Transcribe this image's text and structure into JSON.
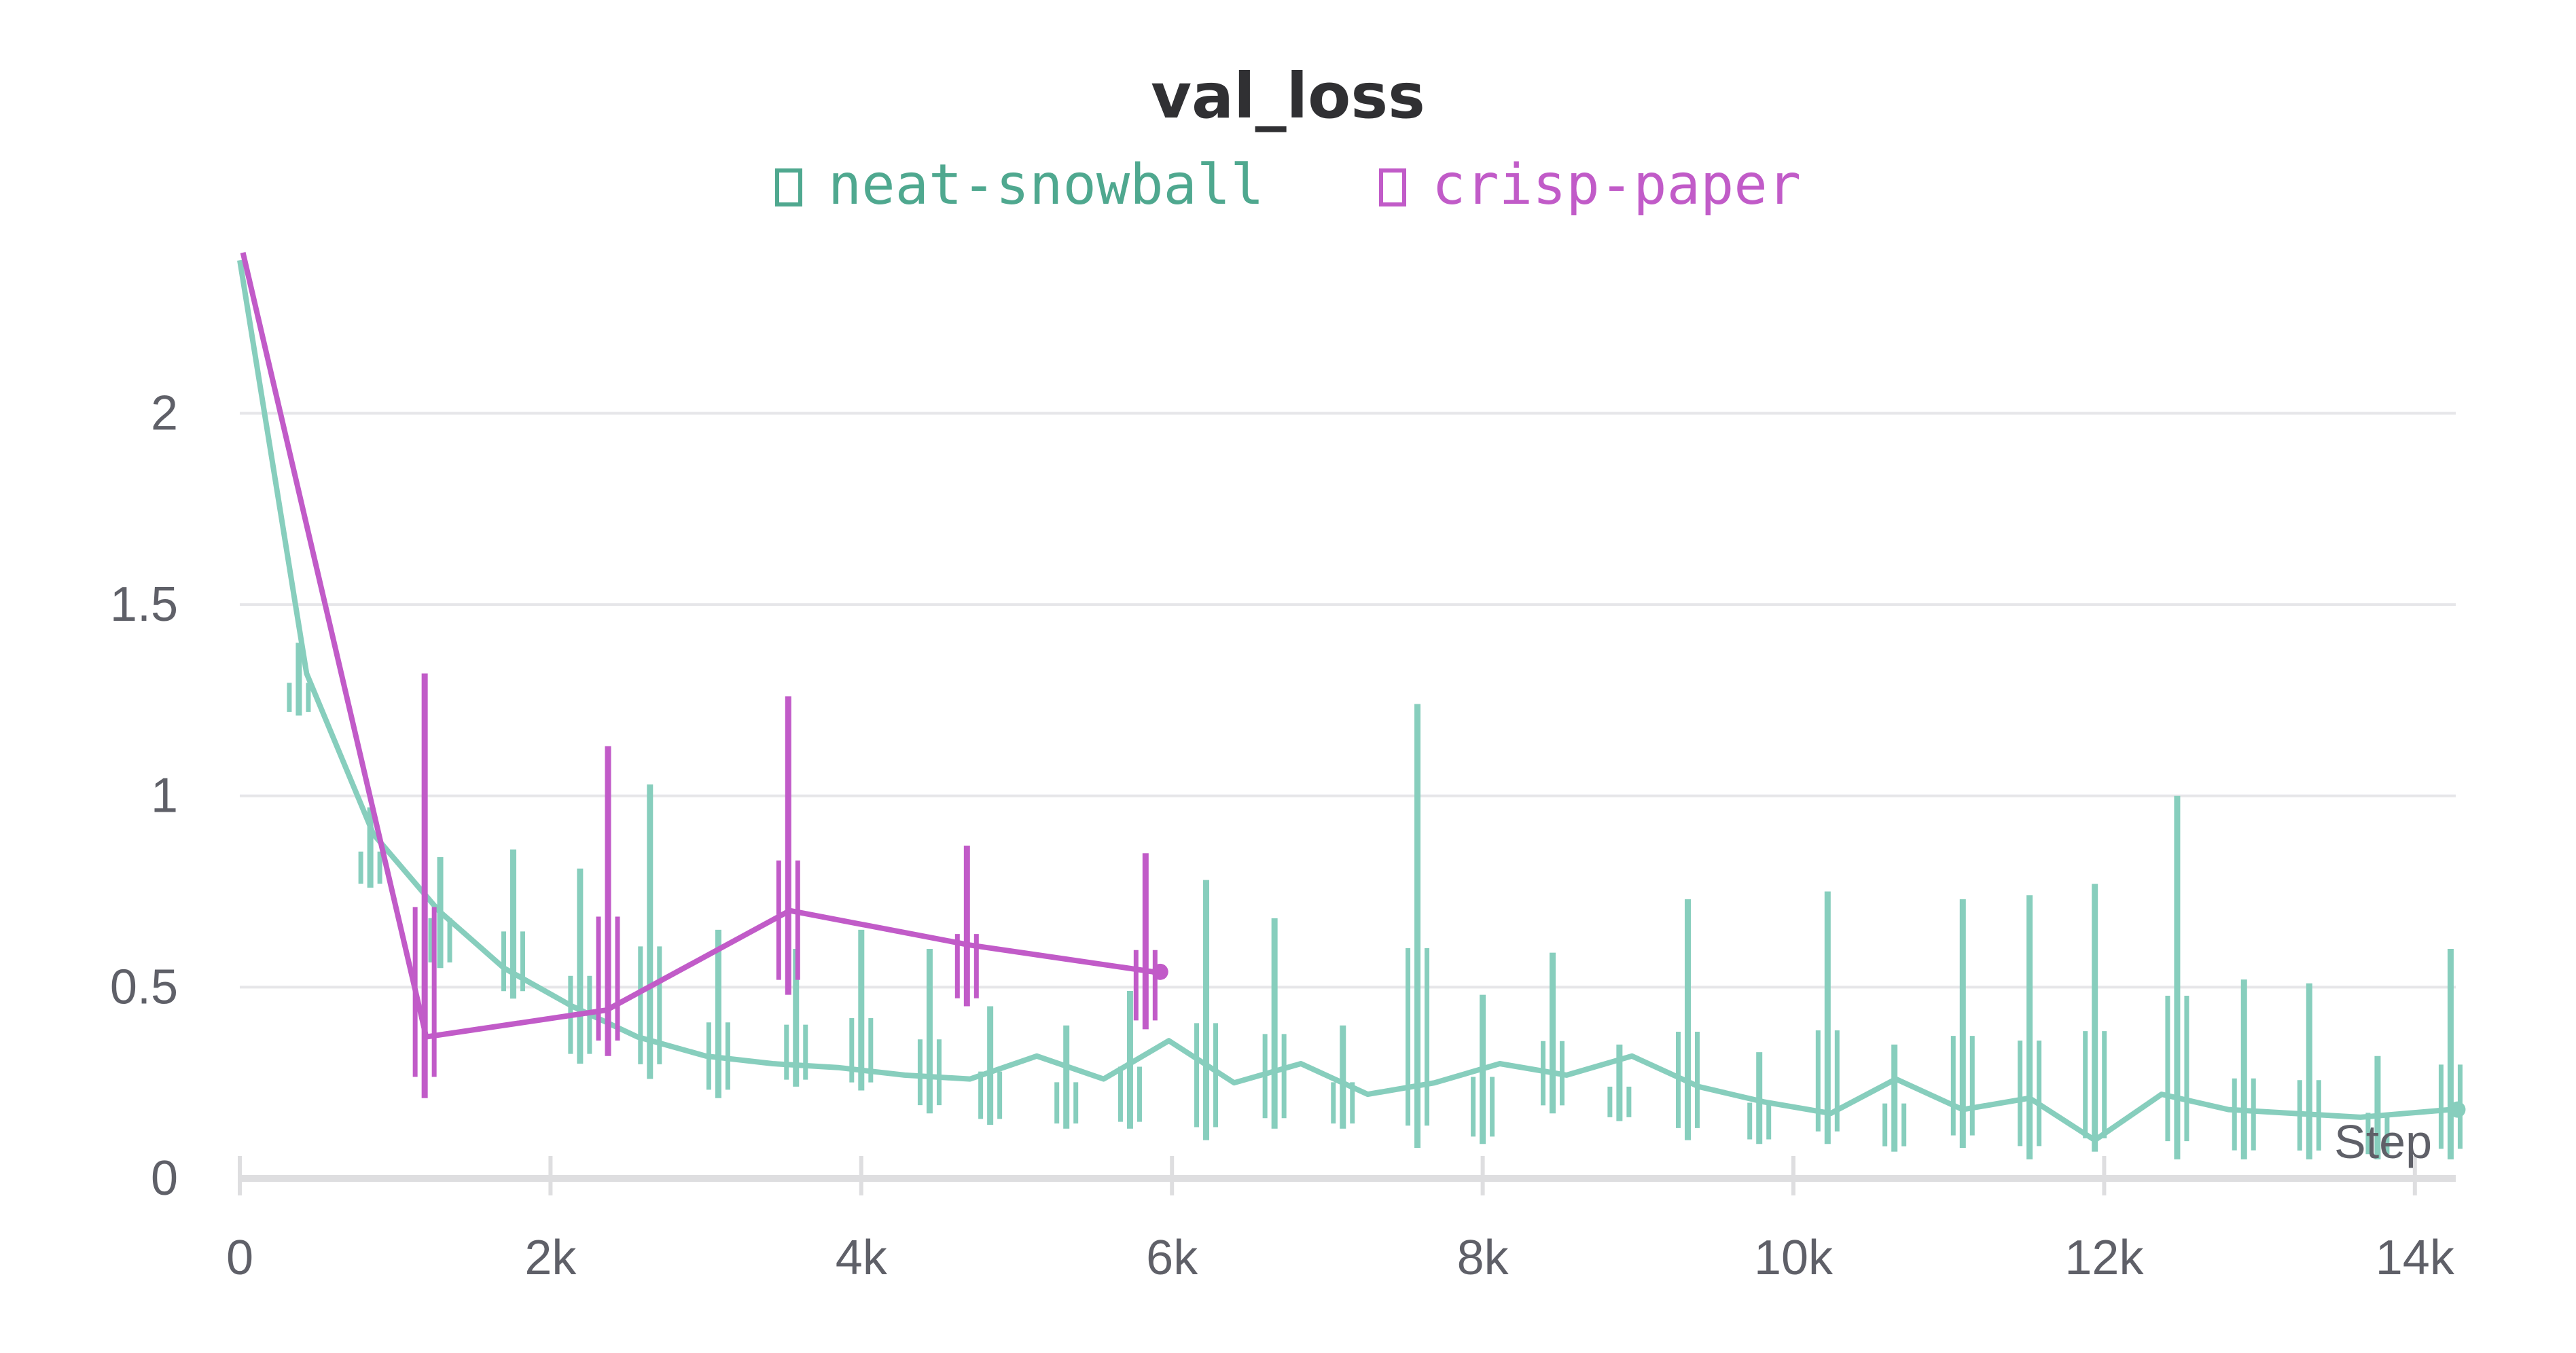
{
  "chart_data": {
    "type": "line",
    "title": "val_loss",
    "xlabel": "Step",
    "ylabel": "",
    "xlim": [
      0,
      14250
    ],
    "ylim": [
      0,
      2.45
    ],
    "x_ticks": [
      {
        "value": 0,
        "label": "0"
      },
      {
        "value": 2000,
        "label": "2k"
      },
      {
        "value": 4000,
        "label": "4k"
      },
      {
        "value": 6000,
        "label": "6k"
      },
      {
        "value": 8000,
        "label": "8k"
      },
      {
        "value": 10000,
        "label": "10k"
      },
      {
        "value": 12000,
        "label": "12k"
      },
      {
        "value": 14000,
        "label": "14k"
      }
    ],
    "y_ticks": [
      {
        "value": 0,
        "label": "0"
      },
      {
        "value": 0.5,
        "label": "0.5"
      },
      {
        "value": 1,
        "label": "1"
      },
      {
        "value": 1.5,
        "label": "1.5"
      },
      {
        "value": 2,
        "label": "2"
      }
    ],
    "grid": true,
    "legend_position": "top-center",
    "series": [
      {
        "name": "neat-snowball",
        "color": "#87cebd",
        "legend_color": "#4fa88f",
        "x": [
          0,
          430,
          860,
          1280,
          1700,
          2140,
          2560,
          3000,
          3430,
          3850,
          4280,
          4700,
          5130,
          5560,
          5980,
          6400,
          6830,
          7260,
          7690,
          8110,
          8540,
          8960,
          9390,
          9810,
          10240,
          10660,
          11090,
          11520,
          11940,
          12370,
          12800,
          13220,
          13650,
          14230
        ],
        "y": [
          2.4,
          1.32,
          0.9,
          0.7,
          0.55,
          0.45,
          0.37,
          0.32,
          0.3,
          0.29,
          0.27,
          0.26,
          0.32,
          0.26,
          0.36,
          0.25,
          0.3,
          0.22,
          0.25,
          0.3,
          0.27,
          0.32,
          0.24,
          0.2,
          0.17,
          0.26,
          0.18,
          0.21,
          0.1,
          0.22,
          0.18,
          0.17,
          0.16,
          0.18
        ],
        "spikes": [
          {
            "x": 380,
            "max": 1.4,
            "min": 1.21
          },
          {
            "x": 840,
            "max": 0.97,
            "min": 0.76
          },
          {
            "x": 1290,
            "max": 0.84,
            "min": 0.55
          },
          {
            "x": 1760,
            "max": 0.86,
            "min": 0.47
          },
          {
            "x": 2190,
            "max": 0.81,
            "min": 0.3
          },
          {
            "x": 2640,
            "max": 1.03,
            "min": 0.26
          },
          {
            "x": 3080,
            "max": 0.65,
            "min": 0.21
          },
          {
            "x": 3580,
            "max": 0.6,
            "min": 0.24
          },
          {
            "x": 4000,
            "max": 0.65,
            "min": 0.23
          },
          {
            "x": 4440,
            "max": 0.6,
            "min": 0.17
          },
          {
            "x": 4830,
            "max": 0.45,
            "min": 0.14
          },
          {
            "x": 5320,
            "max": 0.4,
            "min": 0.13
          },
          {
            "x": 5730,
            "max": 0.49,
            "min": 0.13
          },
          {
            "x": 6220,
            "max": 0.78,
            "min": 0.1
          },
          {
            "x": 6660,
            "max": 0.68,
            "min": 0.13
          },
          {
            "x": 7100,
            "max": 0.4,
            "min": 0.13
          },
          {
            "x": 7580,
            "max": 1.24,
            "min": 0.08
          },
          {
            "x": 8000,
            "max": 0.48,
            "min": 0.09
          },
          {
            "x": 8450,
            "max": 0.59,
            "min": 0.17
          },
          {
            "x": 8880,
            "max": 0.35,
            "min": 0.15
          },
          {
            "x": 9320,
            "max": 0.73,
            "min": 0.1
          },
          {
            "x": 9780,
            "max": 0.33,
            "min": 0.09
          },
          {
            "x": 10220,
            "max": 0.75,
            "min": 0.09
          },
          {
            "x": 10650,
            "max": 0.35,
            "min": 0.07
          },
          {
            "x": 11090,
            "max": 0.73,
            "min": 0.08
          },
          {
            "x": 11520,
            "max": 0.74,
            "min": 0.05
          },
          {
            "x": 11940,
            "max": 0.77,
            "min": 0.07
          },
          {
            "x": 12470,
            "max": 1.0,
            "min": 0.05
          },
          {
            "x": 12900,
            "max": 0.52,
            "min": 0.05
          },
          {
            "x": 13320,
            "max": 0.51,
            "min": 0.05
          },
          {
            "x": 13760,
            "max": 0.32,
            "min": 0.05
          },
          {
            "x": 14230,
            "max": 0.6,
            "min": 0.05
          }
        ]
      },
      {
        "name": "crisp-paper",
        "color": "#c15bc8",
        "legend_color": "#c15bc8",
        "x": [
          20,
          1200,
          2360,
          3540,
          4700,
          5880
        ],
        "y": [
          2.42,
          0.37,
          0.44,
          0.7,
          0.61,
          0.54
        ],
        "spikes": [
          {
            "x": 1190,
            "max": 1.32,
            "min": 0.21
          },
          {
            "x": 2370,
            "max": 1.13,
            "min": 0.32
          },
          {
            "x": 3530,
            "max": 1.26,
            "min": 0.48
          },
          {
            "x": 4680,
            "max": 0.87,
            "min": 0.45
          },
          {
            "x": 5830,
            "max": 0.85,
            "min": 0.39
          }
        ]
      }
    ]
  }
}
